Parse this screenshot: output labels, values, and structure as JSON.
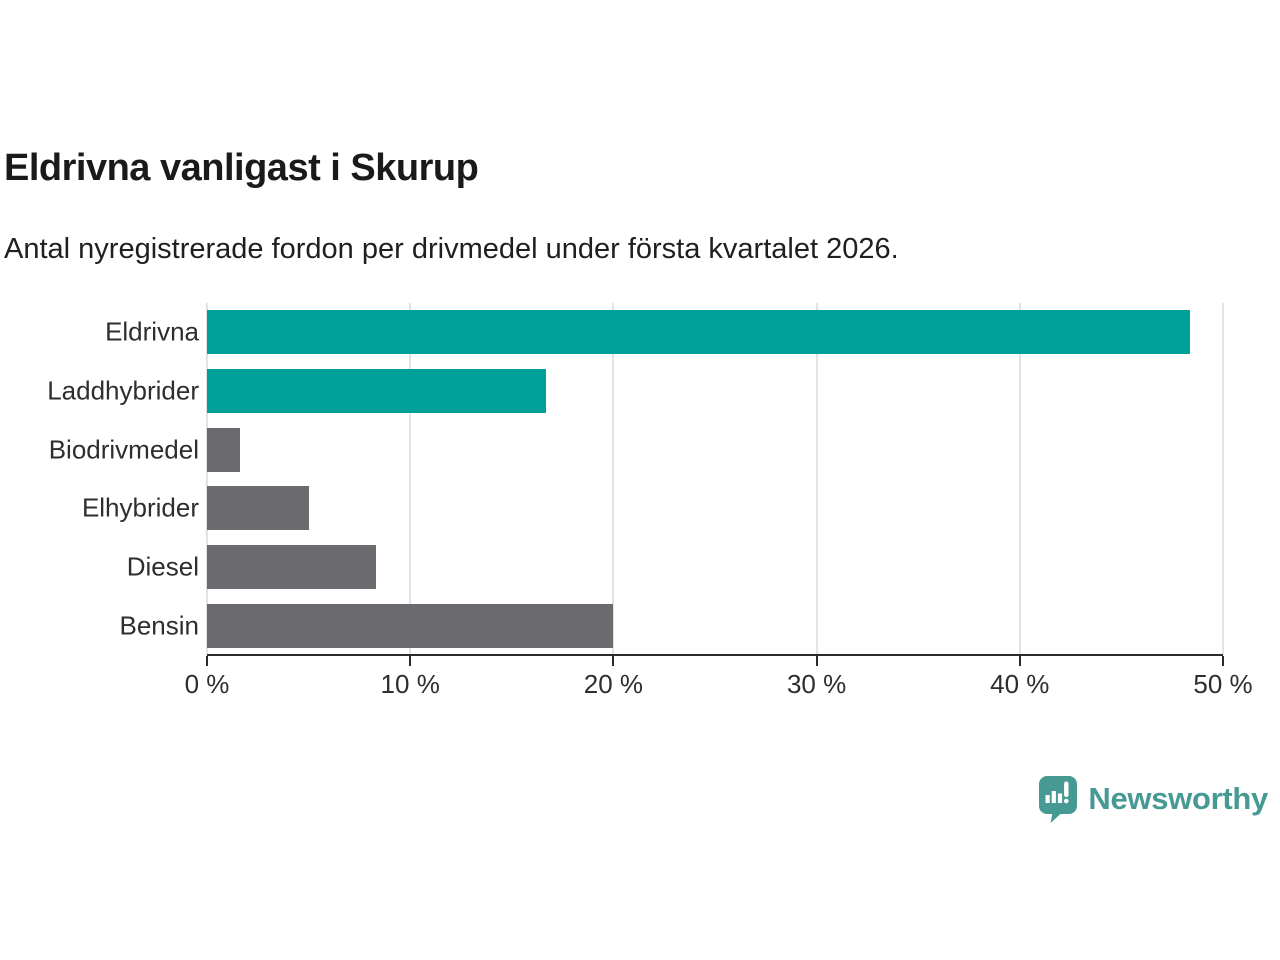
{
  "title": "Eldrivna vanligast i Skurup",
  "subtitle": "Antal nyregistrerade fordon per drivmedel under första kvartalet 2026.",
  "chart_data": {
    "type": "bar",
    "orientation": "horizontal",
    "title": "Eldrivna vanligast i Skurup",
    "subtitle": "Antal nyregistrerade fordon per drivmedel under första kvartalet 2026.",
    "categories": [
      "Eldrivna",
      "Laddhybrider",
      "Biodrivmedel",
      "Elhybrider",
      "Diesel",
      "Bensin"
    ],
    "values": [
      48.4,
      16.7,
      1.6,
      5.0,
      8.3,
      20.0
    ],
    "unit": "%",
    "xlim": [
      0,
      50
    ],
    "xticks": [
      0,
      10,
      20,
      30,
      40,
      50
    ],
    "xtick_labels": [
      "0 %",
      "10 %",
      "20 %",
      "30 %",
      "40 %",
      "50 %"
    ],
    "bar_colors": [
      "#00a09a",
      "#00a09a",
      "#6b6b6f",
      "#6b6b6f",
      "#6b6b6f",
      "#6b6b6f"
    ],
    "highlight_color": "#00a09a",
    "default_color": "#6b6b6f",
    "grid": true,
    "legend": false
  },
  "branding": {
    "logo_text": "Newsworthy",
    "logo_color": "#479a93",
    "logo_icon": "newsworthy-speech-bubble-chart-icon"
  }
}
